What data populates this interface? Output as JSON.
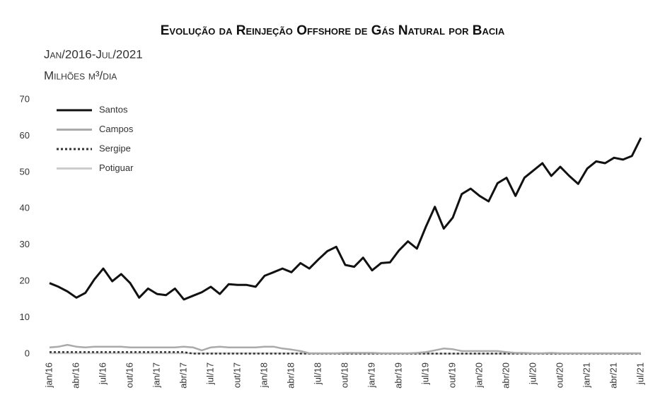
{
  "chart_data": {
    "type": "line",
    "title": "Evolução da Reinjeção Offshore de Gás Natural por Bacia",
    "subtitle": "Jan/2016-Jul/2021",
    "y_label": "Milhões m³/dia",
    "categories": [
      "jan/16",
      null,
      null,
      "abr/16",
      null,
      null,
      "jul/16",
      null,
      null,
      "out/16",
      null,
      null,
      "jan/17",
      null,
      null,
      "abr/17",
      null,
      null,
      "jul/17",
      null,
      null,
      "out/17",
      null,
      null,
      "jan/18",
      null,
      null,
      "abr/18",
      null,
      null,
      "jul/18",
      null,
      null,
      "out/18",
      null,
      null,
      "jan/19",
      null,
      null,
      "abr/19",
      null,
      null,
      "jul/19",
      null,
      null,
      "out/19",
      null,
      null,
      "jan/20",
      null,
      null,
      "abr/20",
      null,
      null,
      "jul/20",
      null,
      null,
      "out/20",
      null,
      null,
      "jan/21",
      null,
      null,
      "abr/21",
      null,
      null,
      "jul/21"
    ],
    "series": [
      {
        "name": "Santos",
        "color": "#111111",
        "style": "solid",
        "values": [
          19.5,
          18.5,
          17.2,
          15.5,
          16.8,
          20.5,
          23.5,
          20,
          22,
          19.5,
          15.5,
          18,
          16.5,
          16.2,
          18,
          15,
          16,
          17,
          18.5,
          16.5,
          19.2,
          19,
          19,
          18.5,
          21.5,
          22.5,
          23.5,
          22.5,
          25,
          23.5,
          26,
          28.3,
          29.5,
          24.5,
          24,
          26.5,
          23,
          25,
          25.2,
          28.5,
          31,
          29,
          35,
          40.5,
          34.5,
          37.5,
          44,
          45.5,
          43.5,
          42,
          47,
          48.5,
          43.5,
          48.5,
          50.5,
          52.5,
          49,
          51.5,
          49,
          46.8,
          51,
          53,
          52.5,
          54,
          53.5,
          54.5,
          59.5
        ]
      },
      {
        "name": "Campos",
        "color": "#aaaaaa",
        "style": "solid",
        "values": [
          1.8,
          2.0,
          2.5,
          2.0,
          1.8,
          2.0,
          2.0,
          2.0,
          2.0,
          1.8,
          1.8,
          1.8,
          1.8,
          1.8,
          1.8,
          2.0,
          1.8,
          1.0,
          1.8,
          2.0,
          1.8,
          1.8,
          1.8,
          1.8,
          2.0,
          2.0,
          1.5,
          1.2,
          0.8,
          0.2,
          0.2,
          0.2,
          0.2,
          0.3,
          0.3,
          0.3,
          0.3,
          0.2,
          0.2,
          0.2,
          0.2,
          0.3,
          0.5,
          1.0,
          1.5,
          1.3,
          0.8,
          0.8,
          0.8,
          0.8,
          0.8,
          0.5,
          0.3,
          0.3,
          0.2,
          0.2,
          0.3,
          0.2,
          0.2,
          0.2,
          0.2,
          0.2,
          0.2,
          0.2,
          0.2,
          0.2,
          0.2
        ]
      },
      {
        "name": "Sergipe",
        "color": "#333333",
        "style": "dotted",
        "values": [
          0.5,
          0.5,
          0.5,
          0.5,
          0.5,
          0.5,
          0.5,
          0.5,
          0.5,
          0.5,
          0.5,
          0.5,
          0.5,
          0.5,
          0.5,
          0.5,
          0.1,
          0.1,
          0.1,
          0.1,
          0.1,
          0.1,
          0.1,
          0.1,
          0.1,
          0.1,
          0.1,
          0.1,
          0.1,
          0.1,
          0.1,
          0.1,
          0.1,
          0.1,
          0.1,
          0.1,
          0.1,
          0.1,
          0.1,
          0.1,
          0.1,
          0.1,
          0.1,
          0.1,
          0.1,
          0.1,
          0.1,
          0.1,
          0.1,
          0.1,
          0.1,
          0.1,
          0.1,
          0.1,
          0.1,
          0.1,
          0.1,
          0.1,
          0.1,
          0.1,
          0.1,
          0.1,
          0.1,
          0.1,
          0.1,
          0.1,
          0.1
        ]
      },
      {
        "name": "Potiguar",
        "color": "#cccccc",
        "style": "solid",
        "values": [
          0.2,
          0.2,
          0.2,
          0.2,
          0.2,
          0.2,
          0.2,
          0.2,
          0.2,
          0.2,
          0.2,
          0.2,
          0.2,
          0.2,
          0.2,
          0.2,
          0.2,
          0.2,
          0.2,
          0.2,
          0.2,
          0.2,
          0.2,
          0.2,
          0.2,
          0.2,
          0.2,
          0.2,
          0.2,
          0.1,
          0.1,
          0.1,
          0.1,
          0.1,
          0.1,
          0.1,
          0.1,
          0.1,
          0.1,
          0.1,
          0.1,
          0.1,
          0.1,
          0.1,
          0.1,
          0.1,
          0.1,
          0.1,
          0.1,
          0.1,
          0.1,
          0.1,
          0.1,
          0.1,
          0.1,
          0.1,
          0.1,
          0.1,
          0.1,
          0.1,
          0.1,
          0.1,
          0.1,
          0.1,
          0.1,
          0.1,
          0.1
        ]
      }
    ],
    "ylim": [
      0,
      70
    ],
    "yticks": [
      0,
      10,
      20,
      30,
      40,
      50,
      60,
      70
    ],
    "grid": false,
    "legend": "top-left"
  }
}
